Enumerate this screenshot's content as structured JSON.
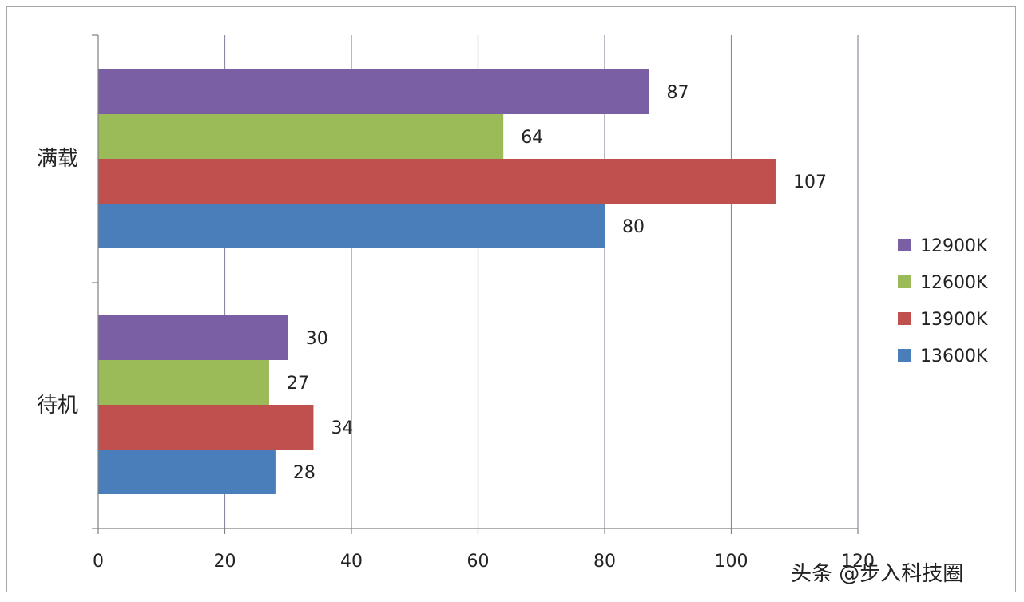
{
  "chart_data": {
    "type": "bar",
    "orientation": "horizontal",
    "categories": [
      "满载",
      "待机"
    ],
    "series": [
      {
        "name": "12900K",
        "color": "#7b5fa5",
        "values": [
          87,
          30
        ]
      },
      {
        "name": "12600K",
        "color": "#9bbb59",
        "values": [
          64,
          27
        ]
      },
      {
        "name": "13900K",
        "color": "#c0504d",
        "values": [
          107,
          34
        ]
      },
      {
        "name": "13600K",
        "color": "#4a7ebb",
        "values": [
          80,
          28
        ]
      }
    ],
    "xlim": [
      0,
      120
    ],
    "xticks": [
      0,
      20,
      40,
      60,
      80,
      100,
      120
    ],
    "grid": true,
    "legend": "right",
    "data_labels": true
  },
  "watermark": "头条 @步入科技圈"
}
